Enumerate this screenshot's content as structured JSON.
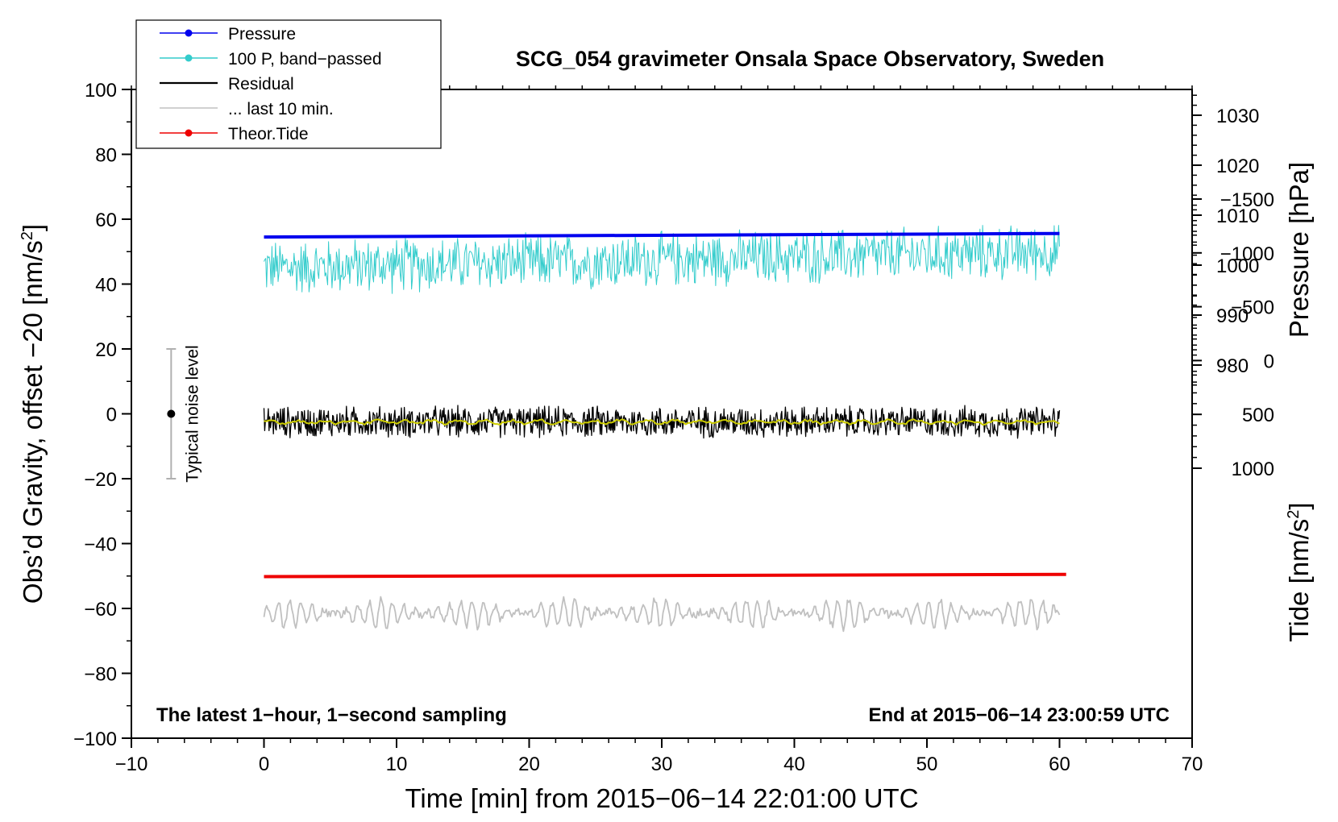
{
  "chart_data": {
    "type": "line",
    "title": "SCG_054 gravimeter Onsala Space Observatory, Sweden",
    "xlabel": "Time [min] from 2015−06−14 22:01:00 UTC",
    "ylabel_left_main": "Obs’d Gravity, offset −20 [nm/s",
    "ylabel_left_sup": "2",
    "ylabel_left_end": "]",
    "ylabel_right_top": "Pressure [hPa]",
    "ylabel_right_bottom_main": "Tide [nm/s",
    "ylabel_right_bottom_sup": "2",
    "ylabel_right_bottom_end": "]",
    "xlim": [
      -10,
      70
    ],
    "ylim": [
      -100,
      100
    ],
    "pressure_axis": [
      980,
      1030
    ],
    "tide_axis": [
      -1500,
      1000
    ],
    "x_ticks": [
      "−10",
      "0",
      "10",
      "20",
      "30",
      "40",
      "50",
      "60",
      "70"
    ],
    "x_tick_values": [
      -10,
      0,
      10,
      20,
      30,
      40,
      50,
      60,
      70
    ],
    "y_ticks": [
      "100",
      "80",
      "60",
      "40",
      "20",
      "0",
      "−20",
      "−40",
      "−60",
      "−80",
      "−100"
    ],
    "y_tick_values": [
      100,
      80,
      60,
      40,
      20,
      0,
      -20,
      -40,
      -60,
      -80,
      -100
    ],
    "pressure_ticks": [
      "1030",
      "1020",
      "1010",
      "1000",
      "990",
      "980"
    ],
    "pressure_tick_values": [
      1030,
      1020,
      1010,
      1000,
      990,
      980
    ],
    "tide_ticks": [
      "1000",
      "500",
      "0",
      "−500",
      "−1000",
      "−1500"
    ],
    "tide_tick_values": [
      1000,
      500,
      0,
      -500,
      -1000,
      -1500
    ],
    "legend": [
      {
        "label": "Pressure",
        "color": "#0000ee",
        "marker": true
      },
      {
        "label": "100 P, band−passed",
        "color": "#33cccc",
        "marker": true
      },
      {
        "label": "Residual",
        "color": "#000000",
        "marker": false
      },
      {
        "label": "... last 10 min.",
        "color": "#c0c0c0",
        "marker": false
      },
      {
        "label": "Theor.Tide",
        "color": "#ee0000",
        "marker": true
      }
    ],
    "legend_position": "top-left",
    "series": [
      {
        "name": "Pressure",
        "color": "#0000ee",
        "x": [
          0,
          60
        ],
        "y": [
          54.5,
          55.6
        ]
      },
      {
        "name": "100 P, band−passed",
        "color": "#33cccc",
        "center": [
          45,
          50
        ],
        "amplitude": 8
      },
      {
        "name": "Residual",
        "color": "#000000",
        "center": -2.5,
        "amplitude": 5
      },
      {
        "name": "Residual smoothed",
        "color": "#cccc00",
        "center": -2.5,
        "amplitude": 0.8
      },
      {
        "name": "... last 10 min.",
        "color": "#c0c0c0",
        "center": -61.5,
        "amplitude": 4
      },
      {
        "name": "Theor.Tide",
        "color": "#ee0000",
        "x": [
          0,
          60.5
        ],
        "y": [
          -50.2,
          -49.5
        ]
      }
    ],
    "noise_bar": {
      "label": "Typical noise level",
      "x": -7,
      "y": 0,
      "low": -20,
      "high": 20
    },
    "annotation_left": "The latest 1−hour, 1−second sampling",
    "annotation_right": "End at 2015−06−14 23:00:59 UTC",
    "grid": false
  }
}
